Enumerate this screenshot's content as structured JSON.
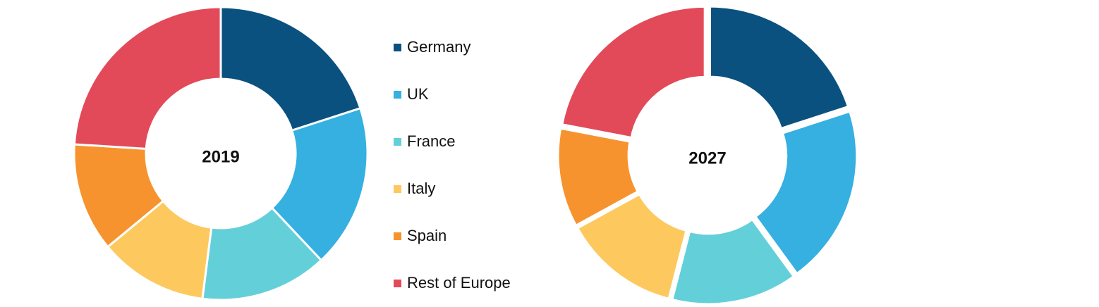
{
  "chart_data": [
    {
      "type": "pie",
      "title": "2019",
      "categories": [
        "Germany",
        "UK",
        "France",
        "Italy",
        "Spain",
        "Rest of Europe"
      ],
      "values": [
        20,
        18,
        14,
        12,
        12,
        24
      ],
      "colors": [
        "#0a5180",
        "#35b0e0",
        "#63cfd8",
        "#fdc95f",
        "#f7932e",
        "#e24a5a"
      ]
    },
    {
      "type": "pie",
      "title": "2027",
      "categories": [
        "Germany",
        "UK",
        "France",
        "Italy",
        "Spain",
        "Rest of Europe"
      ],
      "values": [
        20,
        20,
        14,
        13,
        11,
        22
      ],
      "colors": [
        "#0a5180",
        "#35b0e0",
        "#63cfd8",
        "#fdc95f",
        "#f7932e",
        "#e24a5a"
      ]
    }
  ]
}
